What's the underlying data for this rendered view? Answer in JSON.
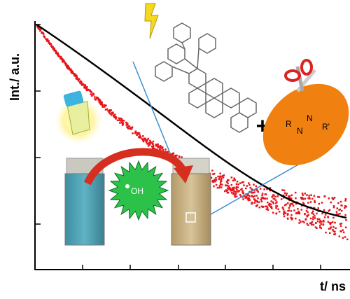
{
  "axes": {
    "y_label": "Int./ a.u.",
    "x_label": "t/ ns"
  },
  "radical": {
    "label": "OH"
  },
  "plus": "+",
  "azo": {
    "left": "R",
    "n1": "N",
    "n2": "N",
    "right": "R'"
  }
}
